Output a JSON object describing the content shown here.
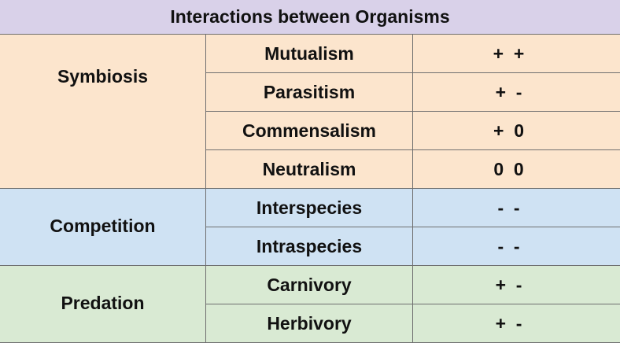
{
  "title": "Interactions between Organisms",
  "colors": {
    "title_bg": "#d9d1e9",
    "symbiosis_bg": "#fce5cd",
    "competition_bg": "#cfe2f3",
    "predation_bg": "#d9ead3",
    "border": "#6f6f6f"
  },
  "groups": [
    {
      "label": "Symbiosis",
      "rows": [
        {
          "type": "Mutualism",
          "effect": "+  +"
        },
        {
          "type": "Parasitism",
          "effect": "+  -"
        },
        {
          "type": "Commensalism",
          "effect": "+  0"
        },
        {
          "type": "Neutralism",
          "effect": "0  0"
        }
      ]
    },
    {
      "label": "Competition",
      "rows": [
        {
          "type": "Interspecies",
          "effect": "-  -"
        },
        {
          "type": "Intraspecies",
          "effect": "-  -"
        }
      ]
    },
    {
      "label": "Predation",
      "rows": [
        {
          "type": "Carnivory",
          "effect": "+  -"
        },
        {
          "type": "Herbivory",
          "effect": "+  -"
        }
      ]
    }
  ]
}
